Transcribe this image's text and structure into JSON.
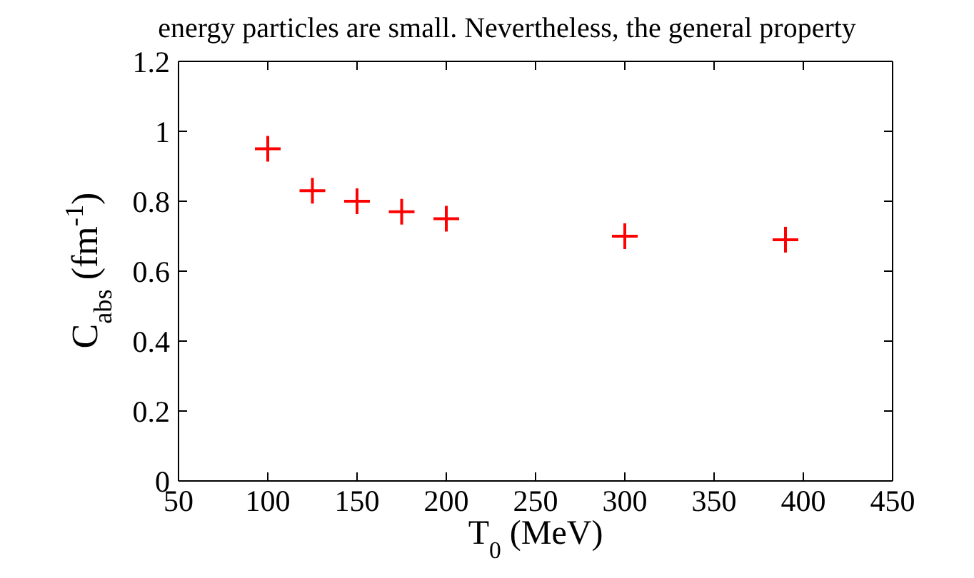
{
  "chart_data": {
    "type": "scatter",
    "xlabel": "T$_{0}$ (MeV)",
    "ylabel": "C$_{abs}$ (fm$^{-1}$)",
    "annotations": [
      "energy particles are small. Nevertheless, the general property"
    ],
    "x": [
      100,
      125,
      150,
      175,
      200,
      300,
      390
    ],
    "series": [
      {
        "color": "#ff0000",
        "values": [
          0.95,
          0.83,
          0.8,
          0.77,
          0.75,
          0.7,
          0.69
        ]
      }
    ],
    "xlim": [
      50,
      450
    ],
    "xticks": [
      50,
      100,
      150,
      200,
      250,
      300,
      350,
      400,
      450
    ],
    "ylim": [
      0,
      1.2
    ],
    "yticks": [
      0,
      0.2,
      0.4,
      0.6,
      0.8,
      1,
      1.2
    ],
    "marker": "cross"
  }
}
